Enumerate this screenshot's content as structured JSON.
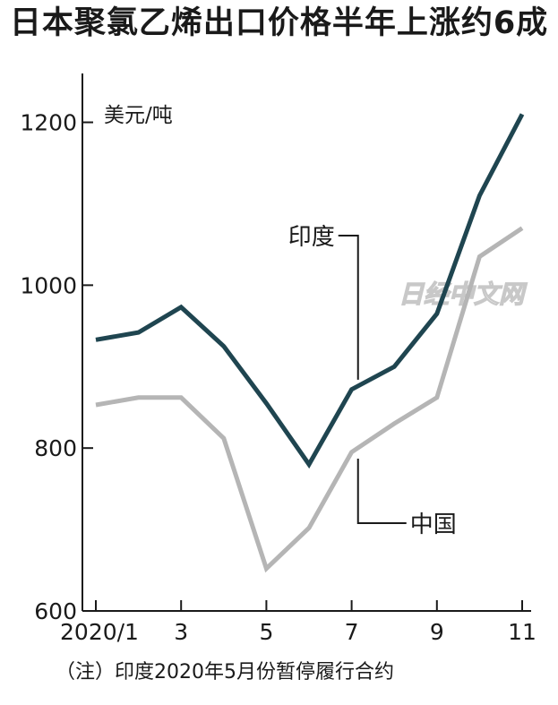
{
  "title": "日本聚氯乙烯出口价格半年上涨约6成",
  "note": "（注）印度2020年5月份暂停履行合约",
  "watermark": "日经中文网",
  "chart_data": {
    "type": "line",
    "title": "日本聚氯乙烯出口价格半年上涨约6成",
    "ylabel": "美元/吨",
    "xlabel": "",
    "ylim": [
      600,
      1260
    ],
    "yticks": [
      600,
      800,
      1000,
      1200
    ],
    "x": [
      1,
      2,
      3,
      4,
      5,
      6,
      7,
      8,
      9,
      10,
      11
    ],
    "x_tick_values": [
      1,
      3,
      5,
      7,
      9,
      11
    ],
    "x_tick_labels": [
      "2020/1",
      "3",
      "5",
      "7",
      "9",
      "11"
    ],
    "grid": false,
    "legend": "inline labels",
    "series": [
      {
        "name": "印度",
        "color": "#1f4550",
        "values": [
          933,
          942,
          973,
          925,
          855,
          780,
          872,
          900,
          965,
          1110,
          1210
        ]
      },
      {
        "name": "中国",
        "color": "#b5b5b5",
        "values": [
          853,
          862,
          862,
          812,
          652,
          702,
          795,
          830,
          862,
          1035,
          1070
        ]
      }
    ]
  }
}
